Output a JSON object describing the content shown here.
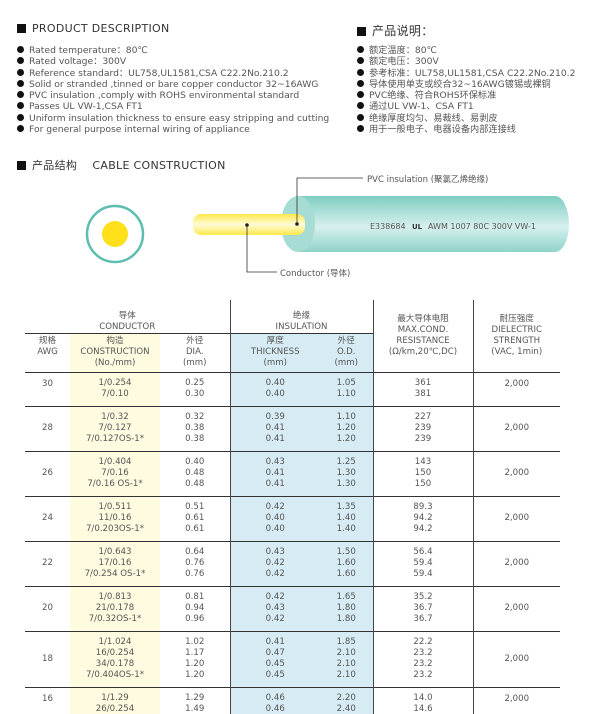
{
  "desc_en": {
    "title": "PRODUCT DESCRIPTION",
    "items": [
      "Rated temperature：80℃",
      "Rated voltage：300V",
      "Reference standard：UL758,UL1581,CSA C22.2No.210.2",
      "Solid or stranded ,tinned or bare copper conductor 32~16AWG",
      "PVC insulation ,comply with ROHS environmental standard",
      "Passes UL VW-1,CSA FT1",
      "Uniform insulation thickness to ensure easy stripping and cutting",
      "For general purpose internal wiring of appliance"
    ]
  },
  "desc_cn": {
    "title": "产品说明：",
    "items": [
      "额定温度：80℃",
      "额定电压：300V",
      "参考标准：UL758,UL1581,CSA C22.2No.210.2",
      "导体使用单支或绞合32~16AWG镀锡或裸铜",
      "PVC绝缘、符合ROHS环保标准",
      "通过UL VW-1、CSA FT1",
      "绝缘厚度均匀、易裁线、易剥皮",
      "用于一般电子、电器设备内部连接线"
    ]
  },
  "construction": {
    "title_cn": "产品结构",
    "title_en": "CABLE CONSTRUCTION",
    "insulation_label": "PVC insulation (聚氯乙烯绝缘)",
    "conductor_label": "Conductor (导体)",
    "print": "E338684",
    "ul_mark": "UL",
    "print2": "AWM 1007 80C 300V VW-1",
    "colors": {
      "insulation": "#8fd3c9",
      "conductor": "#ffe01a"
    }
  },
  "table": {
    "headers": {
      "conductor_cn": "导体",
      "conductor_en": "CONDUCTOR",
      "insulation_cn": "绝缘",
      "insulation_en": "INSULATION",
      "awg_cn": "规格",
      "awg_en": "AWG",
      "cons_cn": "构造",
      "cons_en": "CONSTRUCTION",
      "cons_unit": "(No./mm)",
      "dia_cn": "外径",
      "dia_en": "DIA.",
      "dia_unit": "(mm)",
      "thk_cn": "厚度",
      "thk_en": "THICKNESS",
      "thk_unit": "(mm)",
      "od_cn": "外径",
      "od_en": "O.D.",
      "od_unit": "(mm)",
      "res_cn": "最大导体电阻",
      "res_en1": "MAX.COND.",
      "res_en2": "RESISTANCE",
      "res_unit": "(Ω/km,20℃,DC)",
      "diel_cn": "耐压强度",
      "diel_en1": "DIELECTRIC",
      "diel_en2": "STRENGTH",
      "diel_unit": "(VAC, 1min)"
    },
    "rows": [
      {
        "awg": "30",
        "cons": [
          "1/0.254",
          "7/0.10"
        ],
        "dia": [
          "0.25",
          "0.30"
        ],
        "thk": [
          "0.40",
          "0.40"
        ],
        "od": [
          "1.05",
          "1.10"
        ],
        "res": [
          "361",
          "381"
        ],
        "diel": "2,000"
      },
      {
        "awg": "28",
        "cons": [
          "1/0.32",
          "7/0.127",
          "7/0.127OS-1*"
        ],
        "dia": [
          "0.32",
          "0.38",
          "0.38"
        ],
        "thk": [
          "0.39",
          "0.41",
          "0.41"
        ],
        "od": [
          "1.10",
          "1.20",
          "1.20"
        ],
        "res": [
          "227",
          "239",
          "239"
        ],
        "diel": "2,000"
      },
      {
        "awg": "26",
        "cons": [
          "1/0.404",
          "7/0.16",
          "7/0.16 OS-1*"
        ],
        "dia": [
          "0.40",
          "0.48",
          "0.48"
        ],
        "thk": [
          "0.43",
          "0.41",
          "0.41"
        ],
        "od": [
          "1.25",
          "1.30",
          "1.30"
        ],
        "res": [
          "143",
          "150",
          "150"
        ],
        "diel": "2,000"
      },
      {
        "awg": "24",
        "cons": [
          "1/0.511",
          "11/0.16",
          "7/0.203OS-1*"
        ],
        "dia": [
          "0.51",
          "0.61",
          "0.61"
        ],
        "thk": [
          "0.42",
          "0.40",
          "0.40"
        ],
        "od": [
          "1.35",
          "1.40",
          "1.40"
        ],
        "res": [
          "89.3",
          "94.2",
          "94.2"
        ],
        "diel": "2,000"
      },
      {
        "awg": "22",
        "cons": [
          "1/0.643",
          "17/0.16",
          "7/0.254 OS-1*"
        ],
        "dia": [
          "0.64",
          "0.76",
          "0.76"
        ],
        "thk": [
          "0.43",
          "0.42",
          "0.42"
        ],
        "od": [
          "1.50",
          "1.60",
          "1.60"
        ],
        "res": [
          "56.4",
          "59.4",
          "59.4"
        ],
        "diel": "2,000"
      },
      {
        "awg": "20",
        "cons": [
          "1/0.813",
          "21/0.178",
          "7/0.32OS-1*"
        ],
        "dia": [
          "0.81",
          "0.94",
          "0.96"
        ],
        "thk": [
          "0.42",
          "0.43",
          "0.42"
        ],
        "od": [
          "1.65",
          "1.80",
          "1.80"
        ],
        "res": [
          "35.2",
          "36.7",
          "36.7"
        ],
        "diel": "2,000"
      },
      {
        "awg": "18",
        "cons": [
          "1/1.024",
          "16/0.254",
          "34/0.178",
          "7/0.404OS-1*"
        ],
        "dia": [
          "1.02",
          "1.17",
          "1.20",
          "1.20"
        ],
        "thk": [
          "0.41",
          "0.47",
          "0.45",
          "0.45"
        ],
        "od": [
          "1.85",
          "2.10",
          "2.10",
          "2.10"
        ],
        "res": [
          "22.2",
          "23.2",
          "23.2",
          "23.2"
        ],
        "diel": "2,000"
      },
      {
        "awg": "16",
        "cons": [
          "1/1.29",
          "26/0.254"
        ],
        "dia": [
          "1.29",
          "1.49"
        ],
        "thk": [
          "0.46",
          "0.46"
        ],
        "od": [
          "2.20",
          "2.40"
        ],
        "res": [
          "14.0",
          "14.6"
        ],
        "diel": "2,000"
      }
    ]
  }
}
